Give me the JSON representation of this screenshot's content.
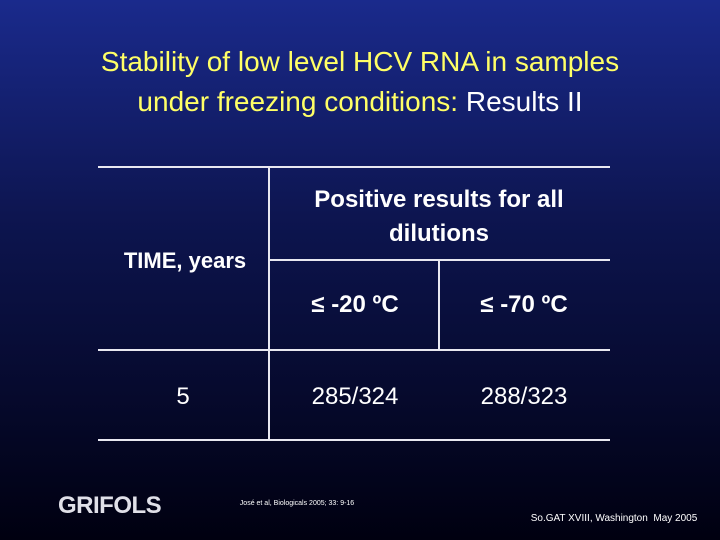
{
  "header": {
    "line1": "Stability of low level HCV RNA in samples",
    "line2": "under freezing conditions:",
    "highlight": "Results II"
  },
  "table": {
    "row_header": "TIME, years",
    "group_header": "Positive results for all dilutions",
    "columns": [
      "≤ -20 ºC",
      "≤ -70 ºC"
    ],
    "rows": [
      [
        "5",
        "285/324",
        "288/323"
      ]
    ]
  },
  "footer": {
    "logo": "GRIFOLS",
    "citation": "José et al, Biologicals 2005; 33: 9-16",
    "event": "So.GAT XVIII, Washington  May 2005"
  }
}
